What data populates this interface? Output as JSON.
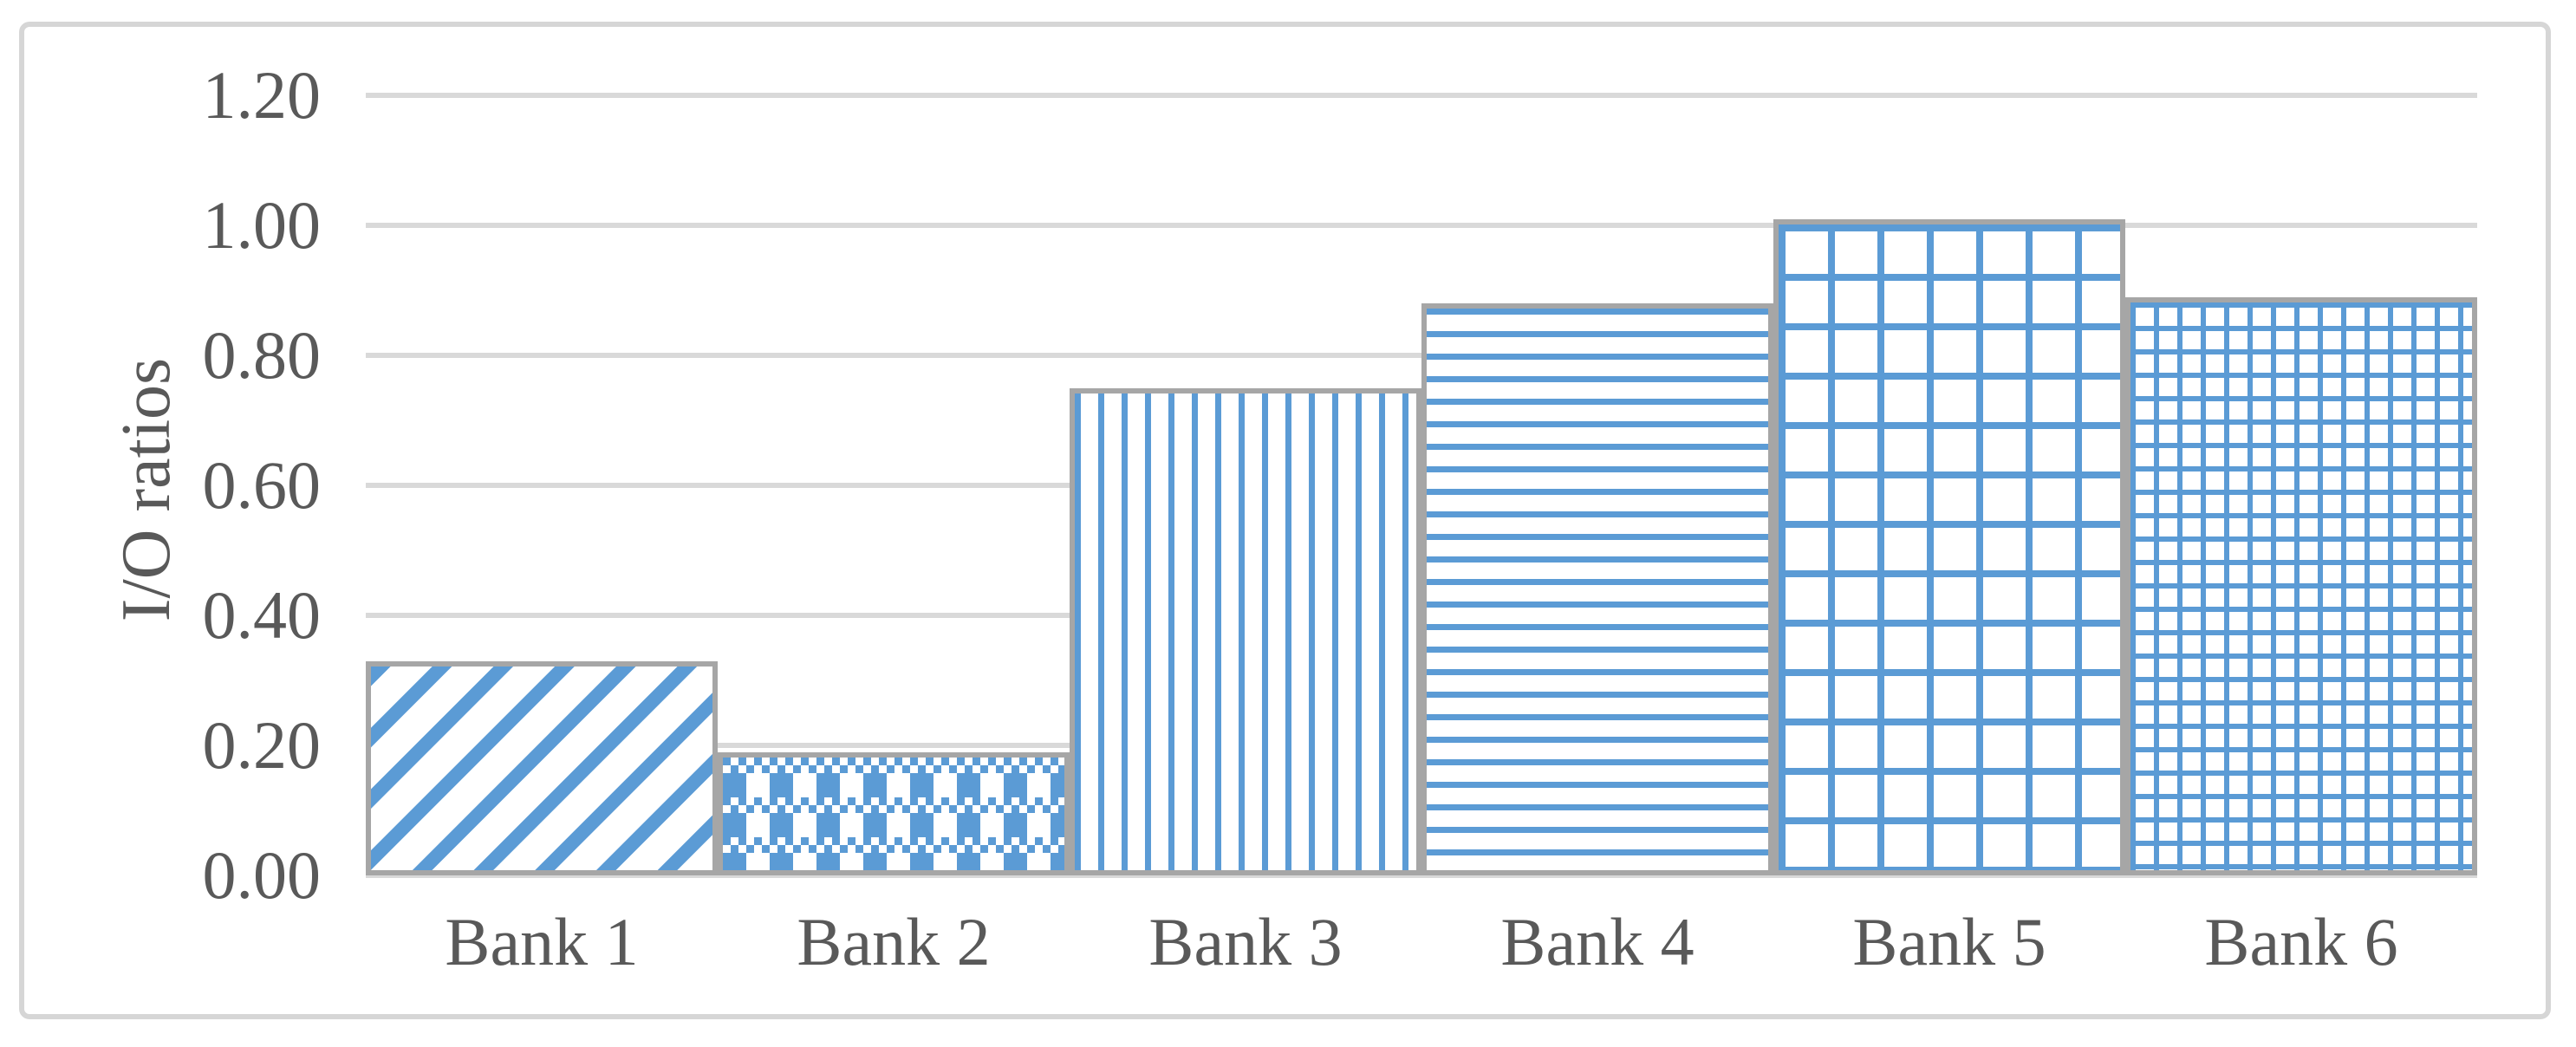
{
  "chart_data": {
    "type": "bar",
    "title": "",
    "xlabel": "",
    "ylabel": "I/O ratios",
    "categories": [
      "Bank 1",
      "Bank 2",
      "Bank 3",
      "Bank 4",
      "Bank 5",
      "Bank 6"
    ],
    "values": [
      0.33,
      0.19,
      0.75,
      0.88,
      1.01,
      0.89
    ],
    "series": [
      {
        "name": "I/O ratios",
        "values": [
          0.33,
          0.19,
          0.75,
          0.88,
          1.01,
          0.89
        ]
      }
    ],
    "ylim": [
      0.0,
      1.2
    ],
    "ytick_step": 0.2,
    "ytick_labels": [
      "1.20",
      "1.00",
      "0.80",
      "0.60",
      "0.40",
      "0.20",
      "0.00"
    ],
    "grid": "horizontal-only",
    "legend_position": "none",
    "bar_patterns": [
      "wide-upward-diagonal-stripe",
      "plaid",
      "vertical-stripe",
      "horizontal-stripe",
      "large-grid",
      "small-grid"
    ],
    "colors": {
      "pattern_foreground": "#5b9bd5",
      "pattern_background": "#ffffff",
      "bar_border": "#a6a6a6",
      "gridline": "#d9d9d9",
      "axis_text": "#595959",
      "chart_frame_border": "#d6d6d6",
      "background": "#ffffff"
    }
  }
}
